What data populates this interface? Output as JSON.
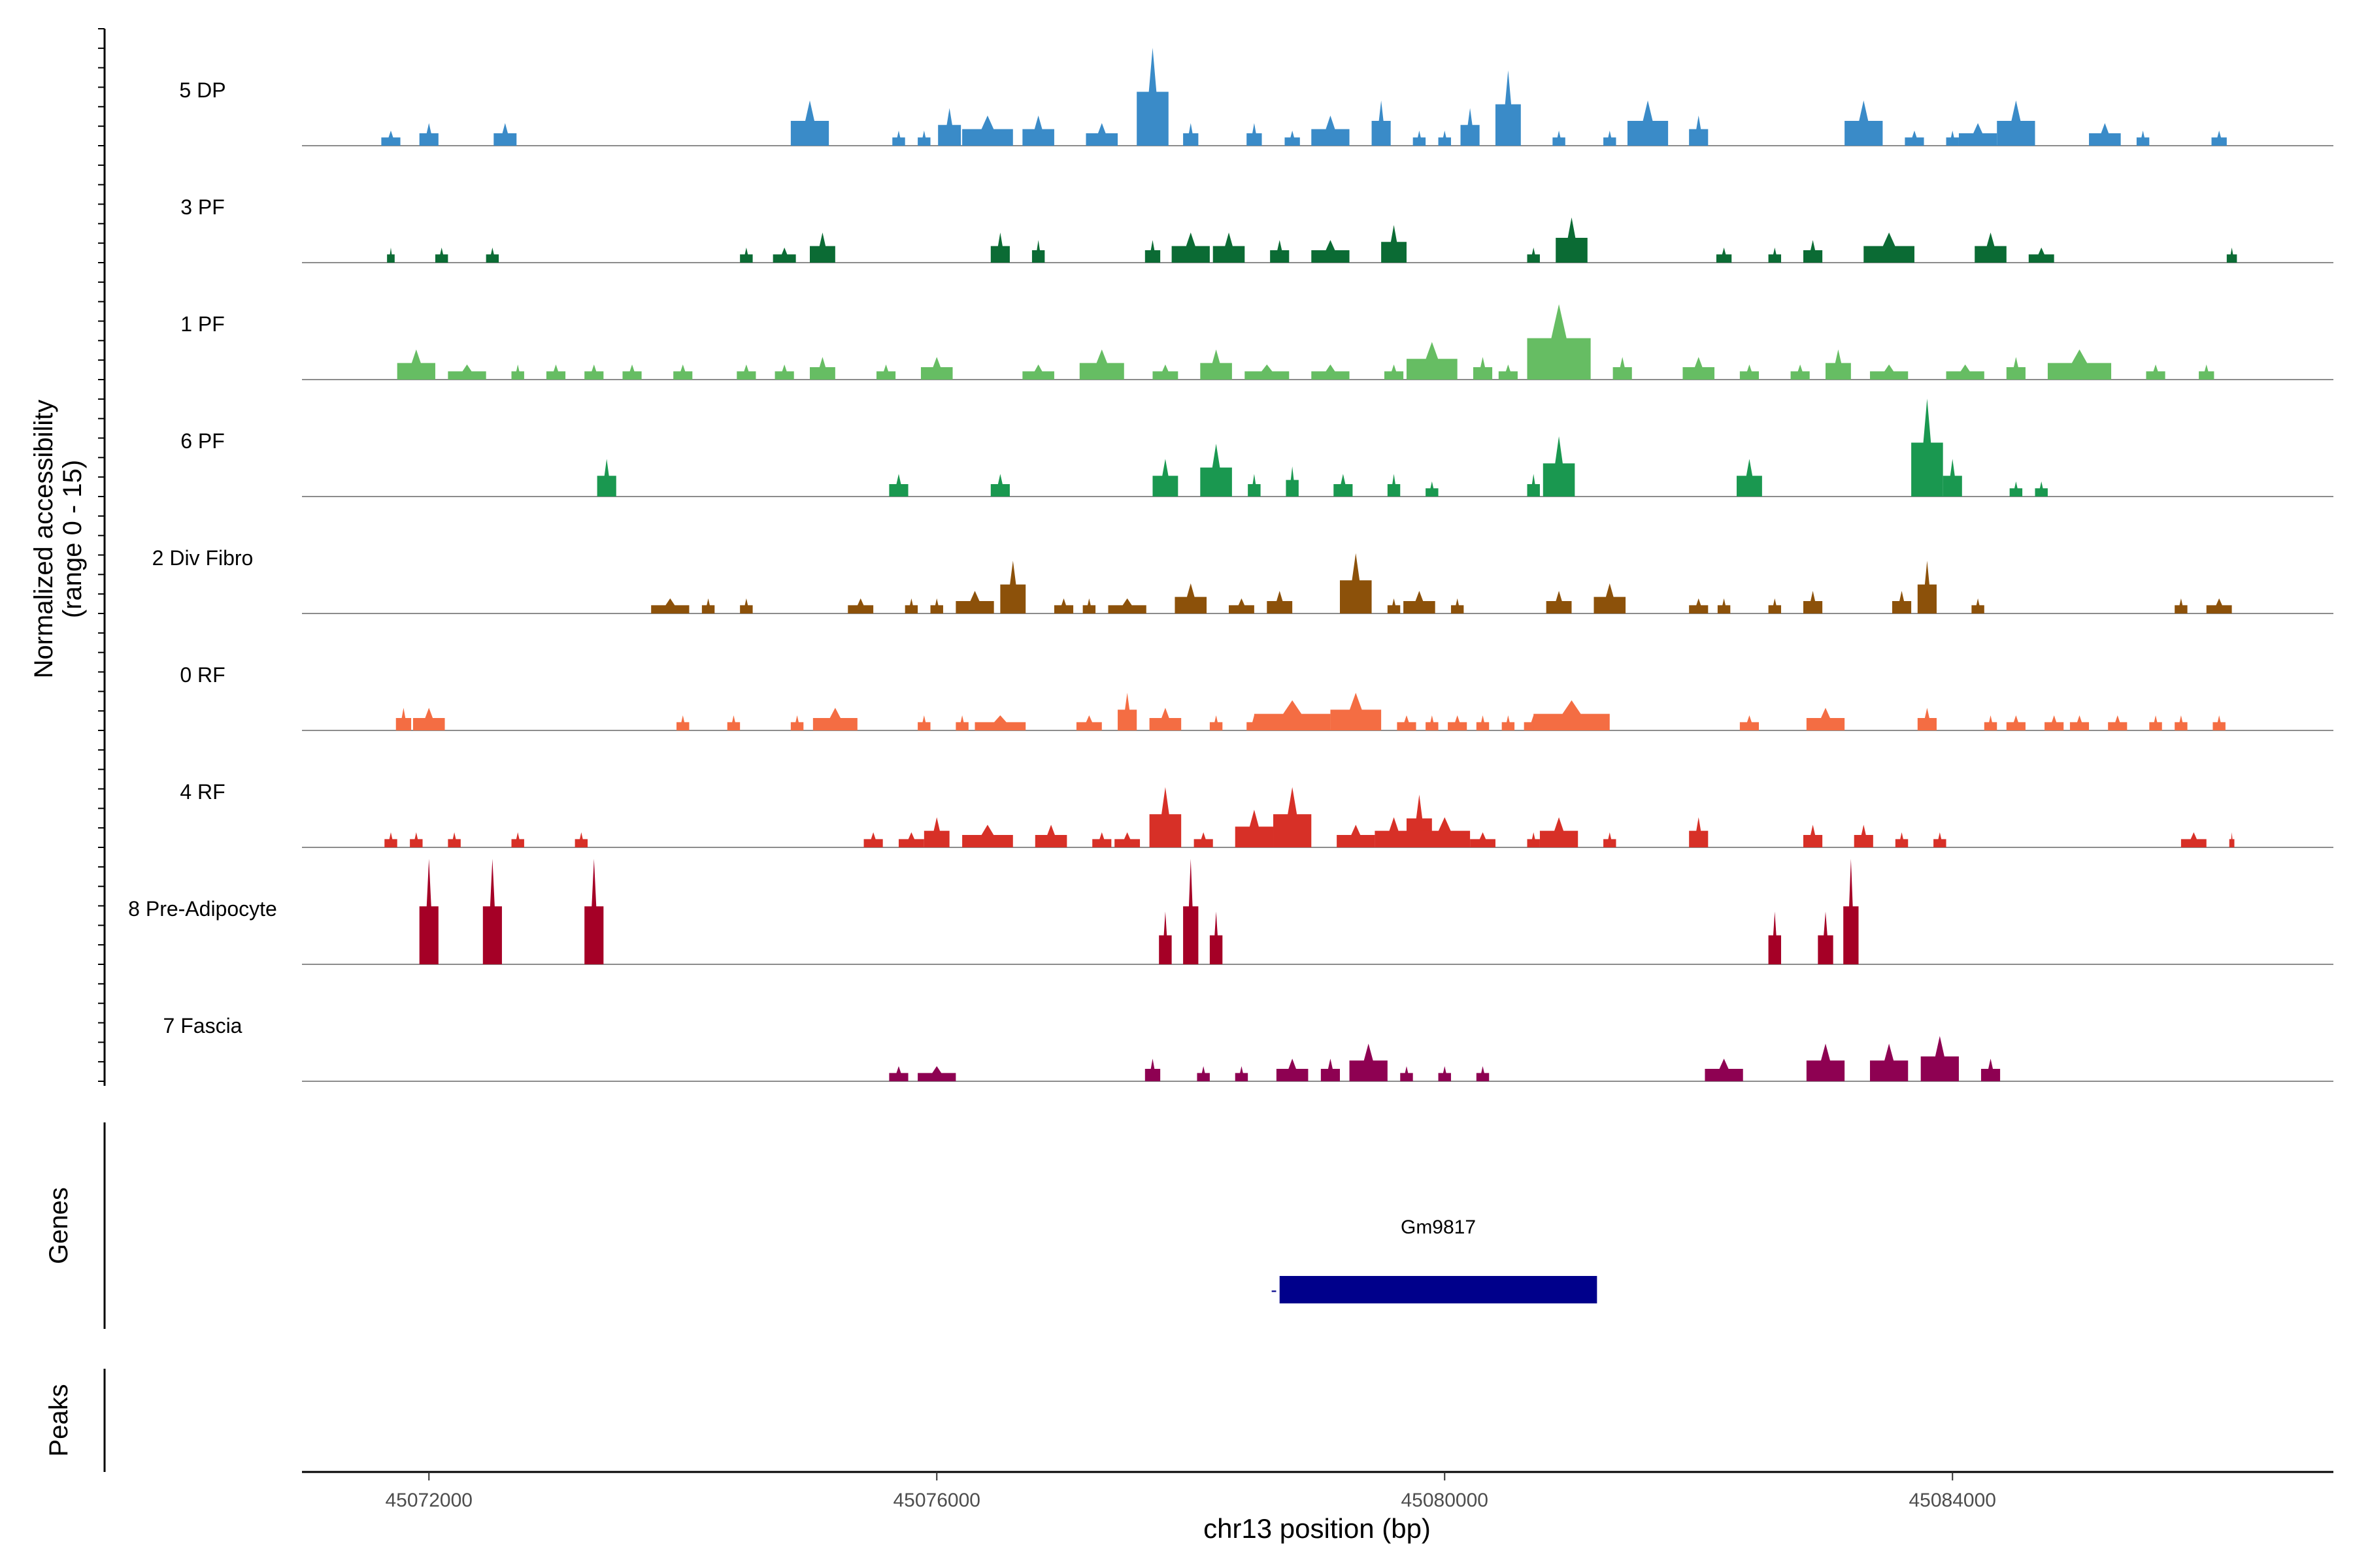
{
  "chart_data": {
    "type": "area",
    "title": "",
    "ylabel_line1": "Normalized accessibility",
    "ylabel_line2": "(range 0 - 15)",
    "ylim": [
      0,
      15
    ],
    "xlabel": "chr13 position (bp)",
    "xlim": [
      45071000,
      45087000
    ],
    "xticks": [
      45072000,
      45076000,
      45080000,
      45084000
    ],
    "xtick_labels": [
      "45072000",
      "45076000",
      "45080000",
      "45084000"
    ],
    "genes_label": "Genes",
    "peaks_label": "Peaks",
    "gene": {
      "name": "Gm9817",
      "start": 45078700,
      "end": 45081200,
      "strand": "-"
    },
    "tracks": [
      {
        "name": "5 DP",
        "color": "#3a8bc8",
        "peaks": [
          [
            45071700,
            150,
            2
          ],
          [
            45072000,
            150,
            3
          ],
          [
            45072600,
            180,
            3
          ],
          [
            45075000,
            300,
            6
          ],
          [
            45075700,
            100,
            2
          ],
          [
            45075900,
            100,
            2
          ],
          [
            45076100,
            180,
            5
          ],
          [
            45076400,
            400,
            4
          ],
          [
            45076800,
            250,
            4
          ],
          [
            45077300,
            250,
            3
          ],
          [
            45077700,
            250,
            13
          ],
          [
            45078000,
            120,
            3
          ],
          [
            45078500,
            120,
            3
          ],
          [
            45078800,
            120,
            2
          ],
          [
            45079100,
            300,
            4
          ],
          [
            45079500,
            150,
            6
          ],
          [
            45079800,
            100,
            2
          ],
          [
            45080000,
            100,
            2
          ],
          [
            45080200,
            150,
            5
          ],
          [
            45080500,
            200,
            10
          ],
          [
            45080900,
            100,
            2
          ],
          [
            45081300,
            100,
            2
          ],
          [
            45081600,
            320,
            6
          ],
          [
            45082000,
            150,
            4
          ],
          [
            45083300,
            300,
            6
          ],
          [
            45083700,
            150,
            2
          ],
          [
            45084000,
            100,
            2
          ],
          [
            45084200,
            300,
            3
          ],
          [
            45084500,
            300,
            6
          ],
          [
            45085200,
            250,
            3
          ],
          [
            45085500,
            100,
            2
          ],
          [
            45086100,
            120,
            2
          ]
        ]
      },
      {
        "name": "3 PF",
        "color": "#0b6b34",
        "peaks": [
          [
            45071700,
            60,
            2
          ],
          [
            45072100,
            100,
            2
          ],
          [
            45072500,
            100,
            2
          ],
          [
            45074500,
            100,
            2
          ],
          [
            45074800,
            180,
            2
          ],
          [
            45075100,
            200,
            4
          ],
          [
            45076500,
            150,
            4
          ],
          [
            45076800,
            100,
            3
          ],
          [
            45077700,
            120,
            3
          ],
          [
            45078000,
            300,
            4
          ],
          [
            45078300,
            250,
            4
          ],
          [
            45078700,
            150,
            3
          ],
          [
            45079100,
            300,
            3
          ],
          [
            45079600,
            200,
            5
          ],
          [
            45080700,
            100,
            2
          ],
          [
            45081000,
            250,
            6
          ],
          [
            45082200,
            120,
            2
          ],
          [
            45082600,
            100,
            2
          ],
          [
            45082900,
            150,
            3
          ],
          [
            45083500,
            400,
            4
          ],
          [
            45084300,
            250,
            4
          ],
          [
            45084700,
            200,
            2
          ],
          [
            45086200,
            80,
            2
          ]
        ]
      },
      {
        "name": "1 PF",
        "color": "#66bd63",
        "peaks": [
          [
            45071900,
            300,
            4
          ],
          [
            45072300,
            300,
            2
          ],
          [
            45072700,
            100,
            2
          ],
          [
            45073000,
            150,
            2
          ],
          [
            45073300,
            150,
            2
          ],
          [
            45073600,
            150,
            2
          ],
          [
            45074000,
            150,
            2
          ],
          [
            45074500,
            150,
            2
          ],
          [
            45074800,
            150,
            2
          ],
          [
            45075100,
            200,
            3
          ],
          [
            45075600,
            150,
            2
          ],
          [
            45076000,
            250,
            3
          ],
          [
            45076800,
            250,
            2
          ],
          [
            45077300,
            350,
            4
          ],
          [
            45077800,
            200,
            2
          ],
          [
            45078200,
            250,
            4
          ],
          [
            45078600,
            350,
            2
          ],
          [
            45079100,
            300,
            2
          ],
          [
            45079600,
            150,
            2
          ],
          [
            45079900,
            400,
            5
          ],
          [
            45080300,
            150,
            3
          ],
          [
            45080500,
            150,
            2
          ],
          [
            45080900,
            500,
            10
          ],
          [
            45081400,
            150,
            3
          ],
          [
            45082000,
            250,
            3
          ],
          [
            45082400,
            150,
            2
          ],
          [
            45082800,
            150,
            2
          ],
          [
            45083100,
            200,
            4
          ],
          [
            45083500,
            300,
            2
          ],
          [
            45084100,
            300,
            2
          ],
          [
            45084500,
            150,
            3
          ],
          [
            45085000,
            500,
            4
          ],
          [
            45085600,
            150,
            2
          ],
          [
            45086000,
            120,
            2
          ]
        ]
      },
      {
        "name": "6 PF",
        "color": "#1a9850",
        "peaks": [
          [
            45073400,
            150,
            5
          ],
          [
            45075700,
            150,
            3
          ],
          [
            45076500,
            150,
            3
          ],
          [
            45077800,
            200,
            5
          ],
          [
            45078200,
            250,
            7
          ],
          [
            45078500,
            100,
            3
          ],
          [
            45078800,
            100,
            4
          ],
          [
            45079200,
            150,
            3
          ],
          [
            45079600,
            100,
            3
          ],
          [
            45079900,
            100,
            2
          ],
          [
            45080700,
            100,
            3
          ],
          [
            45080900,
            250,
            8
          ],
          [
            45082400,
            200,
            5
          ],
          [
            45083800,
            250,
            13
          ],
          [
            45084000,
            150,
            5
          ],
          [
            45084500,
            100,
            2
          ],
          [
            45084700,
            100,
            2
          ]
        ]
      },
      {
        "name": "2 Div Fibro",
        "color": "#8c510a",
        "peaks": [
          [
            45073900,
            300,
            2
          ],
          [
            45074200,
            100,
            2
          ],
          [
            45074500,
            100,
            2
          ],
          [
            45075400,
            200,
            2
          ],
          [
            45075800,
            100,
            2
          ],
          [
            45076000,
            100,
            2
          ],
          [
            45076300,
            300,
            3
          ],
          [
            45076600,
            200,
            7
          ],
          [
            45077000,
            150,
            2
          ],
          [
            45077200,
            100,
            2
          ],
          [
            45077500,
            300,
            2
          ],
          [
            45078000,
            250,
            4
          ],
          [
            45078400,
            200,
            2
          ],
          [
            45078700,
            200,
            3
          ],
          [
            45079300,
            250,
            8
          ],
          [
            45079600,
            100,
            2
          ],
          [
            45079800,
            250,
            3
          ],
          [
            45080100,
            100,
            2
          ],
          [
            45080900,
            200,
            3
          ],
          [
            45081300,
            250,
            4
          ],
          [
            45082000,
            150,
            2
          ],
          [
            45082200,
            100,
            2
          ],
          [
            45082600,
            100,
            2
          ],
          [
            45082900,
            150,
            3
          ],
          [
            45083600,
            150,
            3
          ],
          [
            45083800,
            150,
            7
          ],
          [
            45084200,
            100,
            2
          ],
          [
            45085800,
            100,
            2
          ],
          [
            45086100,
            200,
            2
          ]
        ]
      },
      {
        "name": "0 RF",
        "color": "#f46d43",
        "peaks": [
          [
            45071800,
            120,
            3
          ],
          [
            45072000,
            250,
            3
          ],
          [
            45074000,
            100,
            2
          ],
          [
            45074400,
            100,
            2
          ],
          [
            45074900,
            100,
            2
          ],
          [
            45075200,
            350,
            3
          ],
          [
            45075900,
            100,
            2
          ],
          [
            45076200,
            100,
            2
          ],
          [
            45076500,
            400,
            2
          ],
          [
            45077200,
            200,
            2
          ],
          [
            45077500,
            150,
            5
          ],
          [
            45077800,
            250,
            3
          ],
          [
            45078200,
            100,
            2
          ],
          [
            45078500,
            120,
            2
          ],
          [
            45078800,
            600,
            4
          ],
          [
            45079300,
            400,
            5
          ],
          [
            45079700,
            150,
            2
          ],
          [
            45079900,
            100,
            2
          ],
          [
            45080100,
            150,
            2
          ],
          [
            45080300,
            100,
            2
          ],
          [
            45080500,
            100,
            2
          ],
          [
            45080700,
            150,
            2
          ],
          [
            45081000,
            600,
            4
          ],
          [
            45082400,
            150,
            2
          ],
          [
            45083000,
            300,
            3
          ],
          [
            45083800,
            150,
            3
          ],
          [
            45084300,
            100,
            2
          ],
          [
            45084500,
            150,
            2
          ],
          [
            45084800,
            150,
            2
          ],
          [
            45085000,
            150,
            2
          ],
          [
            45085300,
            150,
            2
          ],
          [
            45085600,
            100,
            2
          ],
          [
            45085800,
            100,
            2
          ],
          [
            45086100,
            100,
            2
          ]
        ]
      },
      {
        "name": "4 RF",
        "color": "#d73027",
        "peaks": [
          [
            45071700,
            100,
            2
          ],
          [
            45071900,
            100,
            2
          ],
          [
            45072200,
            100,
            2
          ],
          [
            45072700,
            100,
            2
          ],
          [
            45073200,
            100,
            2
          ],
          [
            45075500,
            150,
            2
          ],
          [
            45075800,
            200,
            2
          ],
          [
            45076000,
            200,
            4
          ],
          [
            45076400,
            400,
            3
          ],
          [
            45076900,
            250,
            3
          ],
          [
            45077300,
            150,
            2
          ],
          [
            45077500,
            200,
            2
          ],
          [
            45077800,
            250,
            8
          ],
          [
            45078100,
            150,
            2
          ],
          [
            45078500,
            300,
            5
          ],
          [
            45078800,
            300,
            8
          ],
          [
            45079300,
            300,
            3
          ],
          [
            45079600,
            300,
            4
          ],
          [
            45079800,
            200,
            7
          ],
          [
            45080000,
            400,
            4
          ],
          [
            45080300,
            200,
            2
          ],
          [
            45080700,
            100,
            2
          ],
          [
            45080900,
            300,
            4
          ],
          [
            45081300,
            100,
            2
          ],
          [
            45082000,
            150,
            4
          ],
          [
            45082900,
            150,
            3
          ],
          [
            45083300,
            150,
            3
          ],
          [
            45083600,
            100,
            2
          ],
          [
            45083900,
            100,
            2
          ],
          [
            45085900,
            200,
            2
          ],
          [
            45086200,
            40,
            2
          ]
        ]
      },
      {
        "name": "8 Pre-Adipocyte",
        "color": "#a50026",
        "peaks": [
          [
            45072000,
            150,
            14
          ],
          [
            45072500,
            150,
            14
          ],
          [
            45073300,
            150,
            14
          ],
          [
            45077800,
            100,
            7
          ],
          [
            45078000,
            120,
            14
          ],
          [
            45078200,
            100,
            7
          ],
          [
            45082600,
            100,
            7
          ],
          [
            45083000,
            120,
            7
          ],
          [
            45083200,
            120,
            14
          ]
        ]
      },
      {
        "name": "7 Fascia",
        "color": "#8e0152",
        "peaks": [
          [
            45075700,
            150,
            2
          ],
          [
            45076000,
            300,
            2
          ],
          [
            45077700,
            120,
            3
          ],
          [
            45078100,
            100,
            2
          ],
          [
            45078400,
            100,
            2
          ],
          [
            45078800,
            250,
            3
          ],
          [
            45079100,
            150,
            3
          ],
          [
            45079400,
            300,
            5
          ],
          [
            45079700,
            100,
            2
          ],
          [
            45080000,
            100,
            2
          ],
          [
            45080300,
            100,
            2
          ],
          [
            45082200,
            300,
            3
          ],
          [
            45083000,
            300,
            5
          ],
          [
            45083500,
            300,
            5
          ],
          [
            45083900,
            300,
            6
          ],
          [
            45084300,
            150,
            3
          ]
        ]
      }
    ]
  }
}
